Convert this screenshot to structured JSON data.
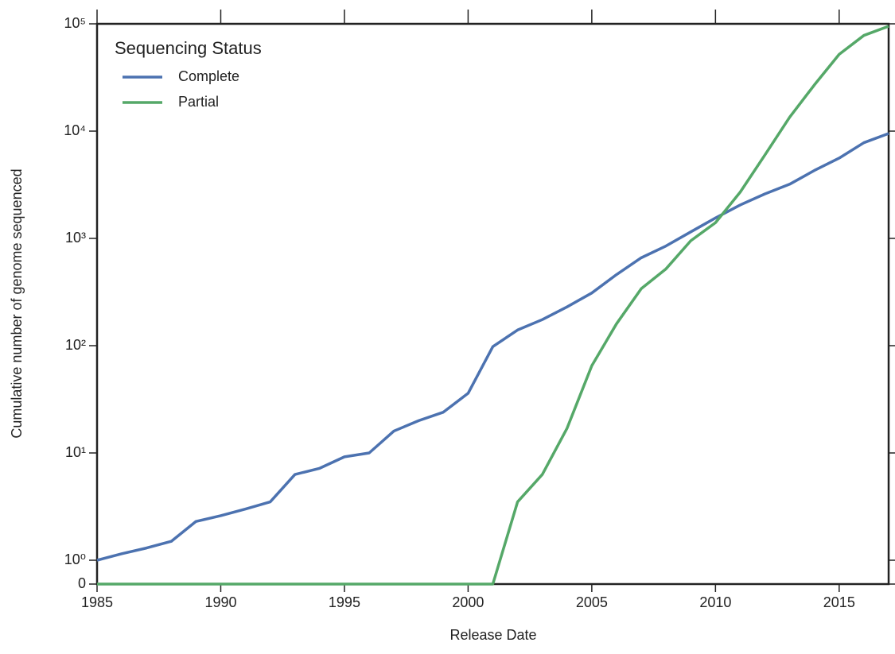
{
  "chart_data": {
    "type": "line",
    "xlabel": "Release Date",
    "ylabel": "Cumulative number of genome sequenced",
    "x": [
      1985,
      1986,
      1987,
      1988,
      1989,
      1990,
      1991,
      1992,
      1993,
      1994,
      1995,
      1996,
      1997,
      1998,
      1999,
      2000,
      2001,
      2002,
      2003,
      2004,
      2005,
      2006,
      2007,
      2008,
      2009,
      2010,
      2011,
      2012,
      2013,
      2014,
      2015,
      2016,
      2017
    ],
    "series": [
      {
        "name": "Complete",
        "color": "#4c72b0",
        "values": [
          1,
          1.15,
          1.3,
          1.5,
          2.3,
          2.6,
          3,
          3.5,
          6.3,
          7.2,
          9.2,
          10,
          16,
          20,
          24,
          36,
          98,
          140,
          175,
          230,
          310,
          460,
          660,
          850,
          1150,
          1550,
          2050,
          2600,
          3200,
          4300,
          5600,
          7800,
          9500
        ]
      },
      {
        "name": "Partial",
        "color": "#55a868",
        "values": [
          0,
          0,
          0,
          0,
          0,
          0,
          0,
          0,
          0,
          0,
          0,
          0,
          0,
          0,
          0,
          0,
          0,
          3.5,
          6.3,
          17,
          65,
          160,
          340,
          520,
          950,
          1400,
          2700,
          6000,
          13500,
          27000,
          52000,
          78000,
          95000
        ]
      }
    ],
    "legend_title": "Sequencing Status",
    "legend": "upper left",
    "xlim": [
      1985,
      2017
    ],
    "xticks": [
      1985,
      1990,
      1995,
      2000,
      2005,
      2010,
      2015
    ],
    "ylim": [
      0,
      100000
    ],
    "yscale": "symlog",
    "linthresh": 1,
    "linscale": 0.2,
    "yticks": [
      0,
      {
        "value": 1,
        "label": "10⁰"
      },
      {
        "value": 10,
        "label": "10¹"
      },
      {
        "value": 100,
        "label": "10²"
      },
      {
        "value": 1000,
        "label": "10³"
      },
      {
        "value": 10000,
        "label": "10⁴"
      },
      {
        "value": 100000,
        "label": "10⁵"
      }
    ],
    "grid": false
  }
}
